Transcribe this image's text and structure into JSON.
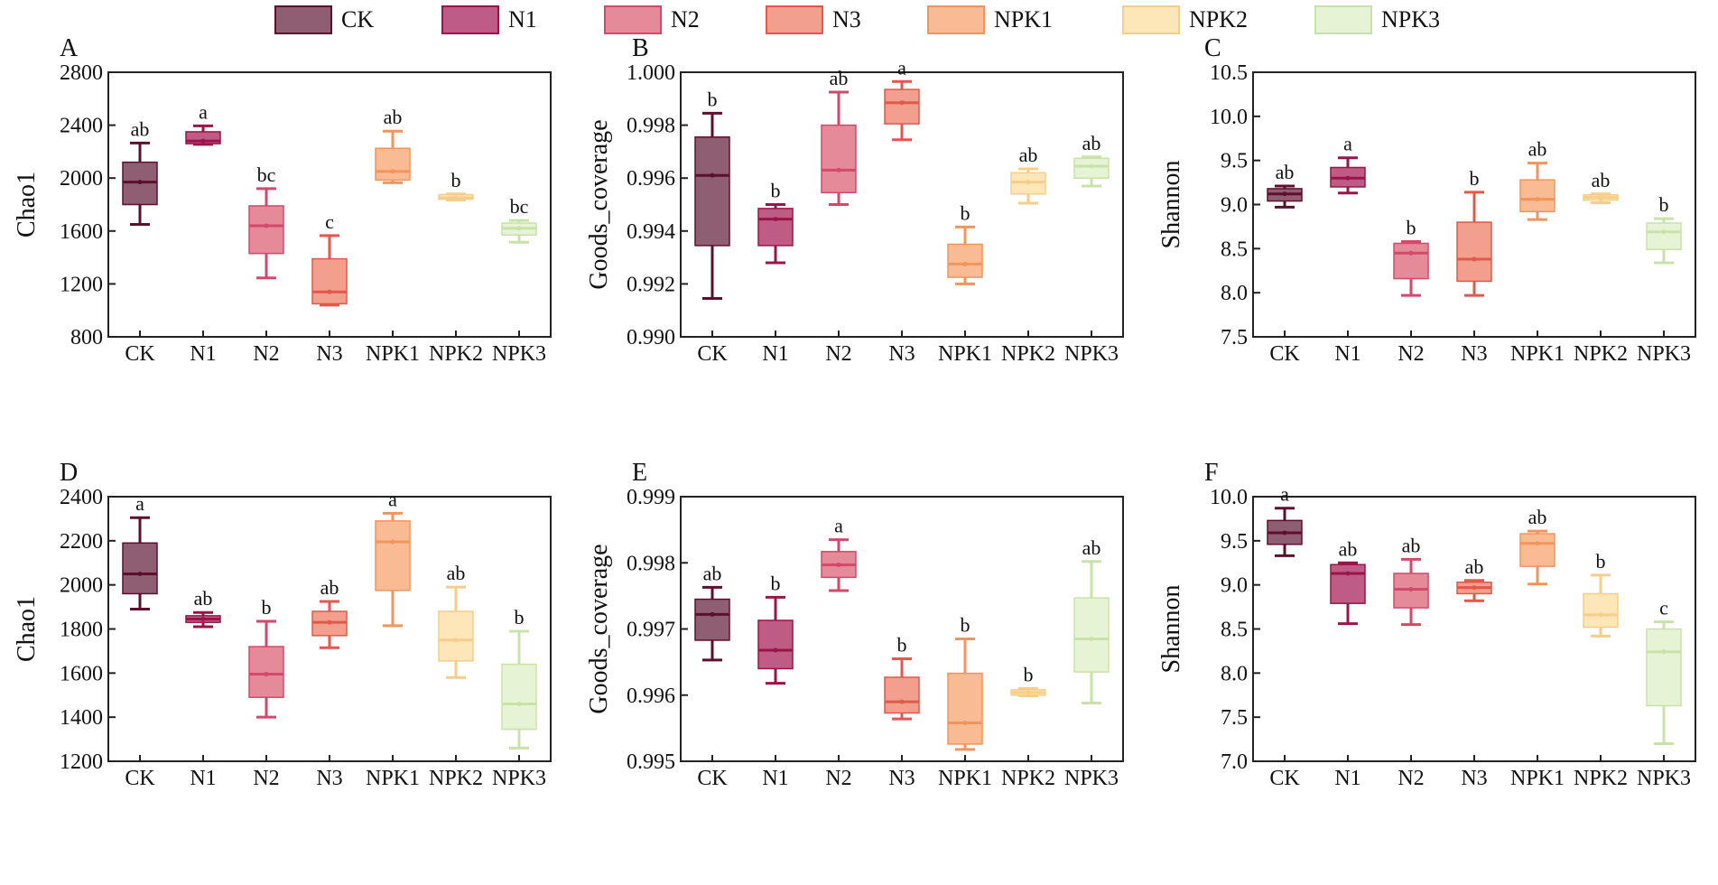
{
  "legend": [
    {
      "label": "CK",
      "color": "#8e5f73",
      "stroke": "#5e0f2c"
    },
    {
      "label": "N1",
      "color": "#bf5c86",
      "stroke": "#9b1449"
    },
    {
      "label": "N2",
      "color": "#e48a98",
      "stroke": "#d2496a"
    },
    {
      "label": "N3",
      "color": "#f29f8d",
      "stroke": "#e4574a"
    },
    {
      "label": "NPK1",
      "color": "#f9bb94",
      "stroke": "#f2955c"
    },
    {
      "label": "NPK2",
      "color": "#fde6b8",
      "stroke": "#f7cd8a"
    },
    {
      "label": "NPK3",
      "color": "#e6f3d4",
      "stroke": "#c8e3a8"
    }
  ],
  "chart_data": [
    {
      "type": "box",
      "panel": "A",
      "ylabel": "Chao1",
      "categories": [
        "CK",
        "N1",
        "N2",
        "N3",
        "NPK1",
        "NPK2",
        "NPK3"
      ],
      "ylim": [
        800,
        2800
      ],
      "yticks": [
        800,
        1200,
        1600,
        2000,
        2400,
        2800
      ],
      "ytick_labels": [
        "800",
        "1200",
        "1600",
        "2000",
        "2400",
        "2800"
      ],
      "boxes": [
        {
          "min": 1650,
          "q1": 1800,
          "median": 1970,
          "q3": 2120,
          "max": 2265,
          "sig": "ab"
        },
        {
          "min": 2255,
          "q1": 2260,
          "median": 2280,
          "q3": 2350,
          "max": 2395,
          "sig": "a"
        },
        {
          "min": 1245,
          "q1": 1430,
          "median": 1640,
          "q3": 1790,
          "max": 1920,
          "sig": "bc"
        },
        {
          "min": 1040,
          "q1": 1050,
          "median": 1140,
          "q3": 1390,
          "max": 1565,
          "sig": "c"
        },
        {
          "min": 1965,
          "q1": 1985,
          "median": 2050,
          "q3": 2225,
          "max": 2355,
          "sig": "ab"
        },
        {
          "min": 1835,
          "q1": 1840,
          "median": 1850,
          "q3": 1875,
          "max": 1880,
          "sig": "b"
        },
        {
          "min": 1515,
          "q1": 1570,
          "median": 1620,
          "q3": 1660,
          "max": 1680,
          "sig": "bc"
        }
      ]
    },
    {
      "type": "box",
      "panel": "B",
      "ylabel": "Goods_coverage",
      "categories": [
        "CK",
        "N1",
        "N2",
        "N3",
        "NPK1",
        "NPK2",
        "NPK3"
      ],
      "ylim": [
        0.99,
        1.0
      ],
      "yticks": [
        0.99,
        0.992,
        0.994,
        0.996,
        0.998,
        1.0
      ],
      "ytick_labels": [
        "0.990",
        "0.992",
        "0.994",
        "0.996",
        "0.998",
        "1.000"
      ],
      "boxes": [
        {
          "min": 0.99145,
          "q1": 0.99345,
          "median": 0.9961,
          "q3": 0.99755,
          "max": 0.99845,
          "sig": "b"
        },
        {
          "min": 0.9928,
          "q1": 0.99345,
          "median": 0.99445,
          "q3": 0.99485,
          "max": 0.995,
          "sig": "b"
        },
        {
          "min": 0.995,
          "q1": 0.99545,
          "median": 0.9963,
          "q3": 0.998,
          "max": 0.99925,
          "sig": "ab"
        },
        {
          "min": 0.99745,
          "q1": 0.99805,
          "median": 0.99885,
          "q3": 0.99935,
          "max": 0.99965,
          "sig": "a"
        },
        {
          "min": 0.992,
          "q1": 0.99225,
          "median": 0.99275,
          "q3": 0.9935,
          "max": 0.99415,
          "sig": "b"
        },
        {
          "min": 0.99505,
          "q1": 0.9954,
          "median": 0.99585,
          "q3": 0.9962,
          "max": 0.99635,
          "sig": "ab"
        },
        {
          "min": 0.9957,
          "q1": 0.996,
          "median": 0.99645,
          "q3": 0.99675,
          "max": 0.9968,
          "sig": "ab"
        }
      ]
    },
    {
      "type": "box",
      "panel": "C",
      "ylabel": "Shannon",
      "categories": [
        "CK",
        "N1",
        "N2",
        "N3",
        "NPK1",
        "NPK2",
        "NPK3"
      ],
      "ylim": [
        7.5,
        10.5
      ],
      "yticks": [
        7.5,
        8.0,
        8.5,
        9.0,
        9.5,
        10.0,
        10.5
      ],
      "ytick_labels": [
        "7.5",
        "8.0",
        "8.5",
        "9.0",
        "9.5",
        "10.0",
        "10.5"
      ],
      "boxes": [
        {
          "min": 8.97,
          "q1": 9.04,
          "median": 9.12,
          "q3": 9.18,
          "max": 9.21,
          "sig": "ab"
        },
        {
          "min": 9.13,
          "q1": 9.2,
          "median": 9.3,
          "q3": 9.42,
          "max": 9.53,
          "sig": "a"
        },
        {
          "min": 7.97,
          "q1": 8.16,
          "median": 8.45,
          "q3": 8.56,
          "max": 8.58,
          "sig": "b"
        },
        {
          "min": 7.97,
          "q1": 8.13,
          "median": 8.38,
          "q3": 8.8,
          "max": 9.14,
          "sig": "b"
        },
        {
          "min": 8.83,
          "q1": 8.92,
          "median": 9.06,
          "q3": 9.28,
          "max": 9.47,
          "sig": "ab"
        },
        {
          "min": 9.02,
          "q1": 9.05,
          "median": 9.08,
          "q3": 9.11,
          "max": 9.12,
          "sig": "ab"
        },
        {
          "min": 8.34,
          "q1": 8.49,
          "median": 8.69,
          "q3": 8.79,
          "max": 8.84,
          "sig": "b"
        }
      ]
    },
    {
      "type": "box",
      "panel": "D",
      "ylabel": "Chao1",
      "categories": [
        "CK",
        "N1",
        "N2",
        "N3",
        "NPK1",
        "NPK2",
        "NPK3"
      ],
      "ylim": [
        1200,
        2400
      ],
      "yticks": [
        1200,
        1400,
        1600,
        1800,
        2000,
        2200,
        2400
      ],
      "ytick_labels": [
        "1200",
        "1400",
        "1600",
        "1800",
        "2000",
        "2200",
        "2400"
      ],
      "boxes": [
        {
          "min": 1890,
          "q1": 1960,
          "median": 2050,
          "q3": 2190,
          "max": 2305,
          "sig": "a"
        },
        {
          "min": 1810,
          "q1": 1830,
          "median": 1845,
          "q3": 1860,
          "max": 1875,
          "sig": "ab"
        },
        {
          "min": 1400,
          "q1": 1490,
          "median": 1595,
          "q3": 1720,
          "max": 1835,
          "sig": "b"
        },
        {
          "min": 1715,
          "q1": 1770,
          "median": 1830,
          "q3": 1880,
          "max": 1925,
          "sig": "ab"
        },
        {
          "min": 1815,
          "q1": 1975,
          "median": 2195,
          "q3": 2290,
          "max": 2325,
          "sig": "a"
        },
        {
          "min": 1580,
          "q1": 1655,
          "median": 1750,
          "q3": 1880,
          "max": 1990,
          "sig": "ab"
        },
        {
          "min": 1260,
          "q1": 1345,
          "median": 1460,
          "q3": 1640,
          "max": 1790,
          "sig": "b"
        }
      ]
    },
    {
      "type": "box",
      "panel": "E",
      "ylabel": "Goods_coverage",
      "categories": [
        "CK",
        "N1",
        "N2",
        "N3",
        "NPK1",
        "NPK2",
        "NPK3"
      ],
      "ylim": [
        0.995,
        0.999
      ],
      "yticks": [
        0.995,
        0.996,
        0.997,
        0.998,
        0.999
      ],
      "ytick_labels": [
        "0.995",
        "0.996",
        "0.997",
        "0.998",
        "0.999"
      ],
      "boxes": [
        {
          "min": 0.99653,
          "q1": 0.99683,
          "median": 0.99722,
          "q3": 0.99745,
          "max": 0.99763,
          "sig": "ab"
        },
        {
          "min": 0.99618,
          "q1": 0.9964,
          "median": 0.99668,
          "q3": 0.99713,
          "max": 0.99748,
          "sig": "b"
        },
        {
          "min": 0.99758,
          "q1": 0.99778,
          "median": 0.99797,
          "q3": 0.99817,
          "max": 0.99835,
          "sig": "a"
        },
        {
          "min": 0.99564,
          "q1": 0.99573,
          "median": 0.9959,
          "q3": 0.99627,
          "max": 0.99655,
          "sig": "b"
        },
        {
          "min": 0.99518,
          "q1": 0.99526,
          "median": 0.99558,
          "q3": 0.99633,
          "max": 0.99685,
          "sig": "b"
        },
        {
          "min": 0.99599,
          "q1": 0.996,
          "median": 0.99604,
          "q3": 0.99608,
          "max": 0.9961,
          "sig": "b"
        },
        {
          "min": 0.99588,
          "q1": 0.99635,
          "median": 0.99685,
          "q3": 0.99747,
          "max": 0.99802,
          "sig": "ab"
        }
      ]
    },
    {
      "type": "box",
      "panel": "F",
      "ylabel": "Shannon",
      "categories": [
        "CK",
        "N1",
        "N2",
        "N3",
        "NPK1",
        "NPK2",
        "NPK3"
      ],
      "ylim": [
        7.0,
        10.0
      ],
      "yticks": [
        7.0,
        7.5,
        8.0,
        8.5,
        9.0,
        9.5,
        10.0
      ],
      "ytick_labels": [
        "7.0",
        "7.5",
        "8.0",
        "8.5",
        "9.0",
        "9.5",
        "10.0"
      ],
      "boxes": [
        {
          "min": 9.33,
          "q1": 9.46,
          "median": 9.59,
          "q3": 9.73,
          "max": 9.87,
          "sig": "a"
        },
        {
          "min": 8.56,
          "q1": 8.79,
          "median": 9.13,
          "q3": 9.23,
          "max": 9.25,
          "sig": "ab"
        },
        {
          "min": 8.55,
          "q1": 8.74,
          "median": 8.95,
          "q3": 9.13,
          "max": 9.29,
          "sig": "ab"
        },
        {
          "min": 8.82,
          "q1": 8.9,
          "median": 8.97,
          "q3": 9.03,
          "max": 9.05,
          "sig": "ab"
        },
        {
          "min": 9.01,
          "q1": 9.21,
          "median": 9.47,
          "q3": 9.58,
          "max": 9.61,
          "sig": "ab"
        },
        {
          "min": 8.42,
          "q1": 8.52,
          "median": 8.66,
          "q3": 8.9,
          "max": 9.11,
          "sig": "b"
        },
        {
          "min": 7.2,
          "q1": 7.63,
          "median": 8.24,
          "q3": 8.5,
          "max": 8.58,
          "sig": "c"
        }
      ]
    }
  ]
}
